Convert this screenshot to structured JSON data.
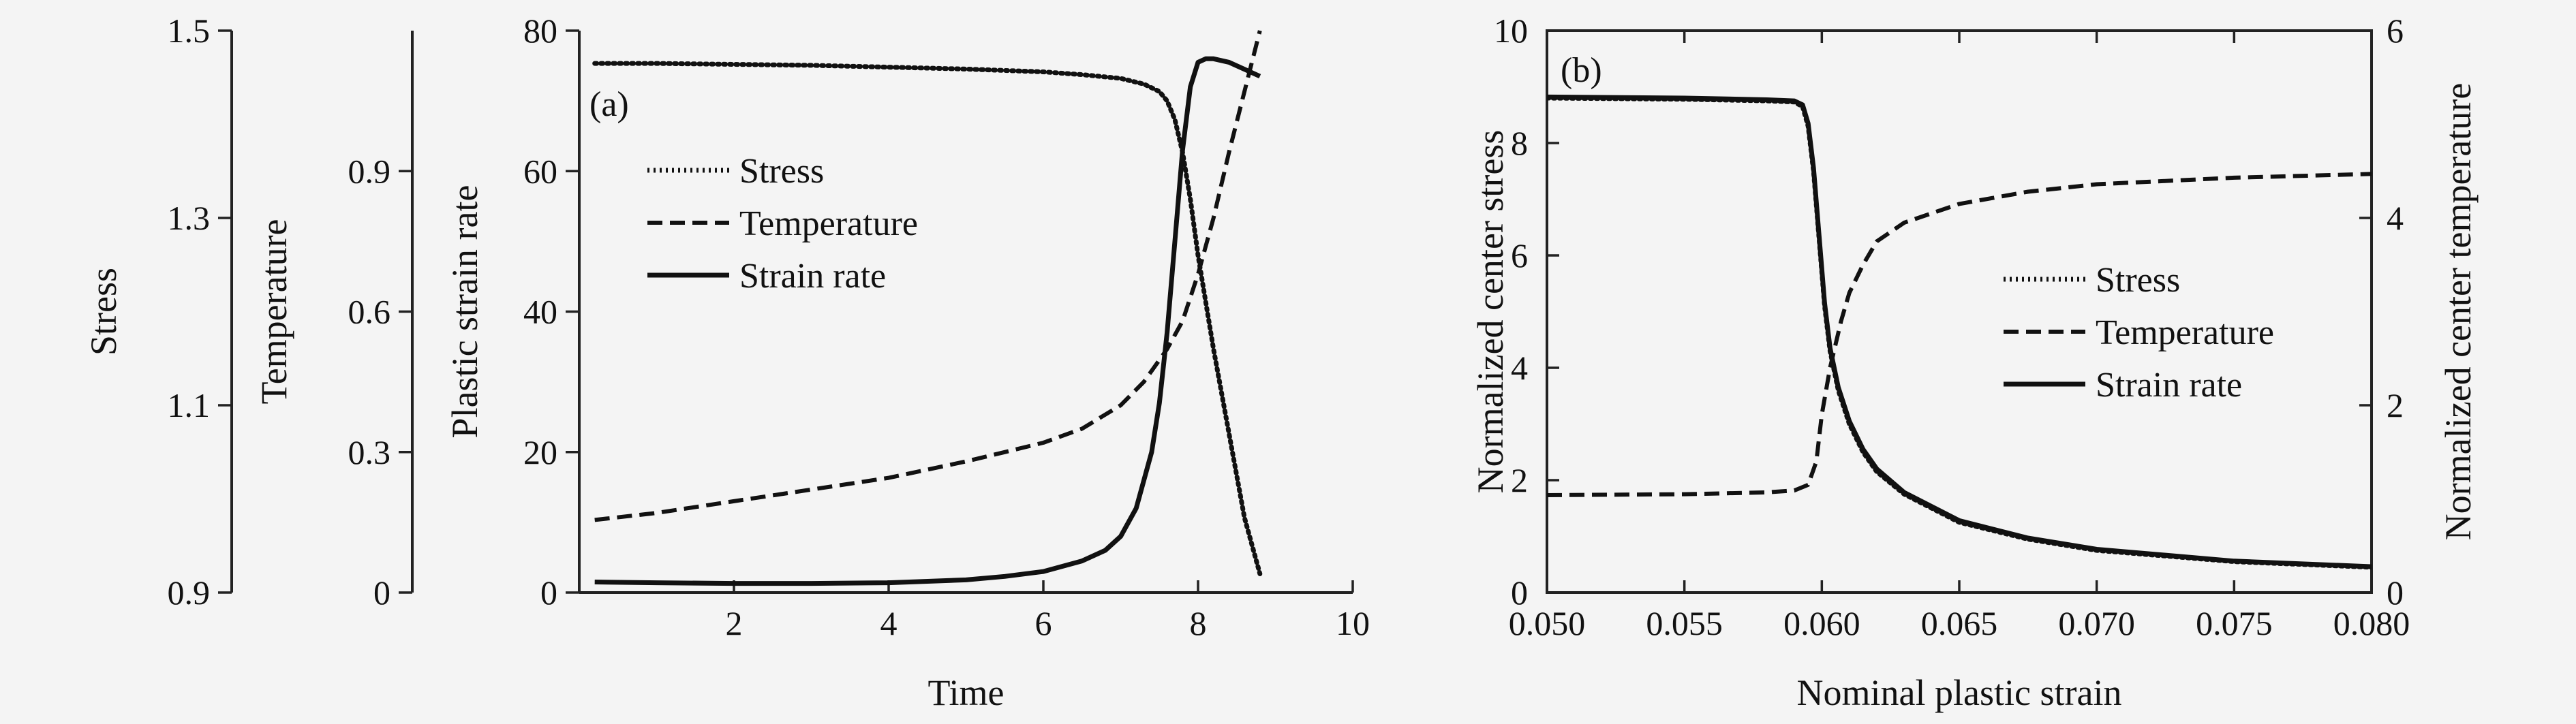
{
  "chart_data": [
    {
      "panel_label": "(a)",
      "type": "line",
      "xlabel": "Time",
      "xlim": [
        0,
        10
      ],
      "x_ticks": [
        "2",
        "4",
        "6",
        "8",
        "10"
      ],
      "y_axes": [
        {
          "label": "Stress",
          "lim": [
            0.9,
            1.5
          ],
          "ticks": [
            "0.9",
            "1.1",
            "1.3",
            "1.5"
          ]
        },
        {
          "label": "Temperature",
          "lim": [
            0,
            1.2
          ],
          "ticks": [
            "0",
            "0.3",
            "0.6",
            "0.9"
          ]
        },
        {
          "label": "Plastic strain rate",
          "lim": [
            0,
            80
          ],
          "ticks": [
            "0",
            "20",
            "40",
            "60",
            "80"
          ]
        }
      ],
      "grid": false,
      "legend_position": "upper-left",
      "series": [
        {
          "name": "Stress",
          "style": "dotted",
          "axis": "Stress",
          "x": [
            0.2,
            1,
            2,
            3,
            4,
            5,
            6,
            6.5,
            7,
            7.3,
            7.5,
            7.6,
            7.7,
            7.8,
            7.9,
            8.0,
            8.2,
            8.4,
            8.6,
            8.8
          ],
          "y": [
            1.465,
            1.465,
            1.464,
            1.463,
            1.461,
            1.459,
            1.456,
            1.453,
            1.449,
            1.443,
            1.435,
            1.425,
            1.405,
            1.37,
            1.32,
            1.26,
            1.16,
            1.07,
            0.98,
            0.92
          ]
        },
        {
          "name": "Temperature",
          "style": "dashed",
          "axis": "Temperature",
          "x": [
            0.2,
            1,
            2,
            3,
            4,
            5,
            5.5,
            6,
            6.5,
            7,
            7.3,
            7.6,
            7.8,
            8.0,
            8.2,
            8.4,
            8.6,
            8.8
          ],
          "y": [
            0.155,
            0.17,
            0.195,
            0.22,
            0.245,
            0.28,
            0.3,
            0.32,
            0.35,
            0.4,
            0.45,
            0.52,
            0.58,
            0.68,
            0.8,
            0.94,
            1.07,
            1.2
          ]
        },
        {
          "name": "Strain rate",
          "style": "solid",
          "axis": "Plastic strain rate",
          "x": [
            0.2,
            1,
            2,
            3,
            4,
            5,
            5.5,
            6,
            6.5,
            6.8,
            7,
            7.2,
            7.4,
            7.5,
            7.6,
            7.7,
            7.8,
            7.9,
            8.0,
            8.1,
            8.2,
            8.4,
            8.6,
            8.8
          ],
          "y": [
            1.5,
            1.4,
            1.3,
            1.3,
            1.4,
            1.8,
            2.3,
            3,
            4.5,
            6,
            8,
            12,
            20,
            27,
            37,
            50,
            63,
            72,
            75.5,
            76,
            76,
            75.5,
            74.5,
            73.5
          ]
        }
      ]
    },
    {
      "panel_label": "(b)",
      "type": "line",
      "xlabel": "Nominal plastic strain",
      "xlim": [
        0.05,
        0.08
      ],
      "x_ticks": [
        "0.050",
        "0.055",
        "0.060",
        "0.065",
        "0.070",
        "0.075",
        "0.080"
      ],
      "y_axes": [
        {
          "label": "Normalized center stress",
          "lim": [
            0,
            10
          ],
          "ticks": [
            "0",
            "2",
            "4",
            "6",
            "8",
            "10"
          ]
        },
        {
          "label": "Normalized center temperature",
          "lim": [
            0,
            6
          ],
          "ticks": [
            "0",
            "2",
            "4",
            "6"
          ]
        }
      ],
      "grid": false,
      "legend_position": "center-right",
      "series": [
        {
          "name": "Stress",
          "style": "dotted",
          "axis": "Normalized center stress",
          "x": [
            0.05,
            0.055,
            0.058,
            0.059,
            0.0593,
            0.0595,
            0.0597,
            0.0599,
            0.0601,
            0.0603,
            0.0606,
            0.061,
            0.0615,
            0.062,
            0.063,
            0.065,
            0.0675,
            0.07,
            0.075,
            0.08
          ],
          "y": [
            8.8,
            8.78,
            8.75,
            8.73,
            8.65,
            8.3,
            7.5,
            6.3,
            5.1,
            4.3,
            3.6,
            3.0,
            2.5,
            2.15,
            1.75,
            1.25,
            0.95,
            0.75,
            0.55,
            0.45
          ]
        },
        {
          "name": "Temperature",
          "style": "dashed",
          "axis": "Normalized center temperature",
          "x": [
            0.05,
            0.055,
            0.058,
            0.059,
            0.0595,
            0.0598,
            0.06,
            0.0603,
            0.0607,
            0.061,
            0.0615,
            0.062,
            0.063,
            0.065,
            0.0675,
            0.07,
            0.075,
            0.08
          ],
          "y": [
            1.04,
            1.05,
            1.07,
            1.09,
            1.15,
            1.4,
            1.9,
            2.4,
            2.9,
            3.2,
            3.5,
            3.75,
            3.95,
            4.15,
            4.28,
            4.36,
            4.43,
            4.47
          ]
        },
        {
          "name": "Strain rate",
          "style": "solid",
          "axis": "Normalized center stress",
          "x": [
            0.05,
            0.055,
            0.058,
            0.059,
            0.0593,
            0.0595,
            0.0597,
            0.0599,
            0.0601,
            0.0603,
            0.0606,
            0.061,
            0.0615,
            0.062,
            0.063,
            0.065,
            0.0675,
            0.07,
            0.075,
            0.08
          ],
          "y": [
            8.82,
            8.8,
            8.77,
            8.75,
            8.68,
            8.35,
            7.55,
            6.35,
            5.15,
            4.35,
            3.65,
            3.05,
            2.55,
            2.2,
            1.78,
            1.28,
            0.97,
            0.77,
            0.56,
            0.46
          ]
        }
      ]
    }
  ]
}
